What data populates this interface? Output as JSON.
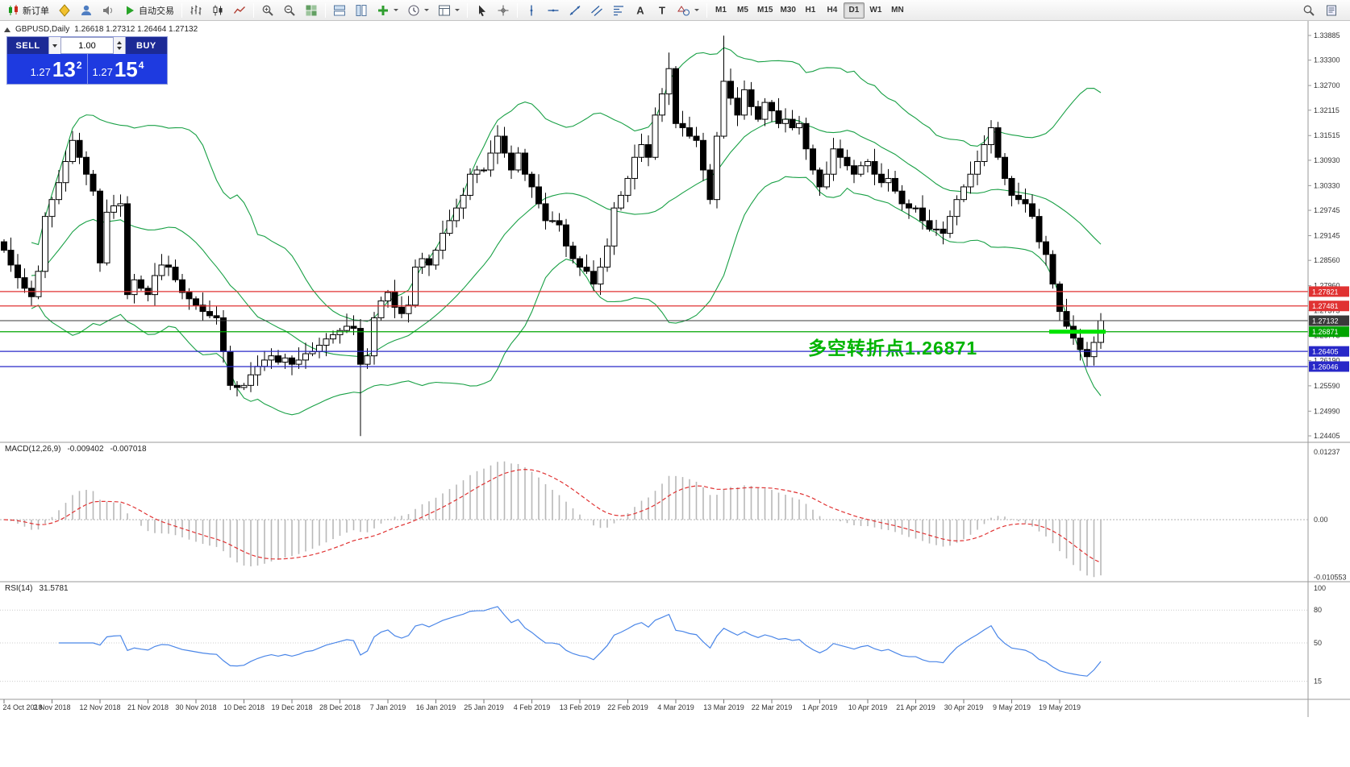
{
  "toolbar": {
    "buttons": [
      {
        "name": "new-order-button",
        "icon": "candles",
        "label": "新订单"
      },
      {
        "name": "metaeditor-button",
        "icon": "bolt"
      },
      {
        "name": "community-button",
        "icon": "user"
      },
      {
        "name": "sounds-button",
        "icon": "speaker"
      },
      {
        "name": "autotrading-button",
        "icon": "play",
        "label": "自动交易"
      },
      {
        "sep": true
      },
      {
        "name": "bar-chart-button",
        "icon": "bars"
      },
      {
        "name": "candlestick-chart-button",
        "icon": "candle"
      },
      {
        "name": "line-chart-button",
        "icon": "line"
      },
      {
        "sep": true
      },
      {
        "name": "zoom-in-button",
        "icon": "zoomin"
      },
      {
        "name": "zoom-out-button",
        "icon": "zoomout"
      },
      {
        "name": "tile-windows-button",
        "icon": "grid"
      },
      {
        "sep": true
      },
      {
        "name": "cascade-windows-button",
        "icon": "tileh"
      },
      {
        "name": "arrange-vertical-button",
        "icon": "tilev"
      },
      {
        "name": "indicators-button",
        "icon": "plus",
        "dropdown": true
      },
      {
        "name": "periods-button",
        "icon": "clock",
        "dropdown": true
      },
      {
        "name": "templates-button",
        "icon": "template",
        "dropdown": true
      },
      {
        "sep": true
      },
      {
        "name": "cursor-button",
        "icon": "cursor"
      },
      {
        "name": "crosshair-button",
        "icon": "crosshair"
      },
      {
        "sep": true
      },
      {
        "name": "vertical-line-button",
        "icon": "vline"
      },
      {
        "name": "horizontal-line-button",
        "icon": "hline"
      },
      {
        "name": "trendline-button",
        "icon": "tline"
      },
      {
        "name": "equidistant-channel-button",
        "icon": "channel"
      },
      {
        "name": "fibonacci-button",
        "icon": "fibo"
      },
      {
        "name": "text-button",
        "icon": "textA"
      },
      {
        "name": "text-label-button",
        "icon": "textT"
      },
      {
        "name": "arrows-button",
        "icon": "shapes",
        "dropdown": true
      },
      {
        "sep": true
      }
    ],
    "timeframes": [
      "M1",
      "M5",
      "M15",
      "M30",
      "H1",
      "H4",
      "D1",
      "W1",
      "MN"
    ],
    "active_timeframe": "D1",
    "right_buttons": [
      {
        "name": "search-button",
        "icon": "search"
      },
      {
        "name": "data-window-button",
        "icon": "book"
      }
    ]
  },
  "symbol": {
    "title": "GBPUSD,Daily",
    "ohlc_text": "1.26618 1.27312 1.26464 1.27132"
  },
  "trade_panel": {
    "sell_label": "SELL",
    "buy_label": "BUY",
    "lot_size": "1.00",
    "sell_price": {
      "prefix": "1.27",
      "big": "13",
      "sup": "2"
    },
    "buy_price": {
      "prefix": "1.27",
      "big": "15",
      "sup": "4"
    },
    "header_color": "#1c2a96",
    "price_color": "#1e3ae0"
  },
  "annotation": {
    "text": "多空转折点1.26871",
    "color": "#00b400"
  },
  "chart_data": {
    "type": "candlestick",
    "symbol": "GBPUSD",
    "timeframe": "Daily",
    "bars_per_label": 7,
    "x_labels": [
      "24 Oct 2018",
      "2 Nov 2018",
      "12 Nov 2018",
      "21 Nov 2018",
      "30 Nov 2018",
      "10 Dec 2018",
      "19 Dec 2018",
      "28 Dec 2018",
      "7 Jan 2019",
      "16 Jan 2019",
      "25 Jan 2019",
      "4 Feb 2019",
      "13 Feb 2019",
      "22 Feb 2019",
      "4 Mar 2019",
      "13 Mar 2019",
      "22 Mar 2019",
      "1 Apr 2019",
      "10 Apr 2019",
      "21 Apr 2019",
      "30 Apr 2019",
      "9 May 2019",
      "19 May 2019"
    ],
    "first_open": 1.29,
    "closes": [
      1.288,
      1.2845,
      1.2815,
      1.279,
      1.277,
      1.283,
      1.296,
      1.3,
      1.304,
      1.309,
      1.314,
      1.31,
      1.306,
      1.302,
      1.285,
      1.297,
      1.2985,
      1.299,
      1.2775,
      1.281,
      1.279,
      1.2775,
      1.282,
      1.2845,
      1.284,
      1.281,
      1.278,
      1.2765,
      1.275,
      1.2735,
      1.2725,
      1.272,
      1.264,
      1.256,
      1.2555,
      1.256,
      1.2585,
      1.2605,
      1.262,
      1.263,
      1.2615,
      1.2625,
      1.261,
      1.262,
      1.2635,
      1.264,
      1.2655,
      1.267,
      1.268,
      1.269,
      1.27,
      1.2695,
      1.261,
      1.263,
      1.272,
      1.276,
      1.278,
      1.2745,
      1.273,
      1.275,
      1.284,
      1.286,
      1.2845,
      1.288,
      1.292,
      1.295,
      1.298,
      1.301,
      1.306,
      1.307,
      1.307,
      1.311,
      1.315,
      1.311,
      1.307,
      1.311,
      1.306,
      1.303,
      1.299,
      1.295,
      1.295,
      1.294,
      1.289,
      1.286,
      1.284,
      1.283,
      1.28,
      1.284,
      1.289,
      1.298,
      1.301,
      1.305,
      1.31,
      1.313,
      1.31,
      1.32,
      1.325,
      1.331,
      1.318,
      1.317,
      1.315,
      1.314,
      1.307,
      1.3,
      1.315,
      1.328,
      1.324,
      1.32,
      1.326,
      1.322,
      1.319,
      1.323,
      1.321,
      1.318,
      1.319,
      1.317,
      1.318,
      1.312,
      1.307,
      1.303,
      1.306,
      1.312,
      1.31,
      1.308,
      1.306,
      1.308,
      1.309,
      1.306,
      1.304,
      1.305,
      1.302,
      1.299,
      1.298,
      1.298,
      1.295,
      1.293,
      1.293,
      1.292,
      1.296,
      1.3,
      1.303,
      1.306,
      1.309,
      1.313,
      1.317,
      1.31,
      1.305,
      1.301,
      1.3,
      1.299,
      1.296,
      1.29,
      1.287,
      1.28,
      1.2735,
      1.27,
      1.2672,
      1.2645,
      1.2628,
      1.26618,
      1.27132
    ],
    "overrides": {
      "52": {
        "low": 1.244
      },
      "97": {
        "high": 1.3348
      },
      "105": {
        "high": 1.3388
      },
      "158": {
        "low": 1.2605
      },
      "160": {
        "high": 1.27312,
        "low": 1.26464
      }
    },
    "y_axis": {
      "min": 1.24405,
      "max": 1.33885,
      "labels": [
        "1.33885",
        "1.33300",
        "1.32700",
        "1.32115",
        "1.31515",
        "1.30930",
        "1.30330",
        "1.29745",
        "1.29145",
        "1.28560",
        "1.27960",
        "1.27375",
        "1.26775",
        "1.26190",
        "1.25590",
        "1.24990",
        "1.24405"
      ]
    },
    "levels": [
      {
        "price": 1.27821,
        "label": "1.27821",
        "color": "#e03232"
      },
      {
        "price": 1.27481,
        "label": "1.27481",
        "color": "#e03232"
      },
      {
        "price": 1.27132,
        "label": "1.27132",
        "color": "#3a3a3a",
        "current": true
      },
      {
        "price": 1.26871,
        "label": "1.26871",
        "color": "#00a400",
        "thick": true
      },
      {
        "price": 1.26405,
        "label": "1.26405",
        "color": "#2828c8"
      },
      {
        "price": 1.26046,
        "label": "1.26046",
        "color": "#2828c8"
      }
    ],
    "indicators": {
      "bollinger": {
        "period": 20,
        "deviation": 2,
        "color": "#18a045"
      },
      "macd": {
        "name": "MACD(12,26,9)",
        "main_value": "-0.009402",
        "signal_value": "-0.007018",
        "histogram_color": "#b8b8b8",
        "signal_color": "#e03232",
        "axis": [
          {
            "v": 0.01237,
            "t": "0.01237"
          },
          {
            "v": 0,
            "t": "0.00"
          },
          {
            "v": -0.010553,
            "t": "-0.010553"
          }
        ]
      },
      "rsi": {
        "name": "RSI(14)",
        "value": "31.5781",
        "color": "#4a86e8",
        "axis": [
          {
            "v": 100,
            "t": "100"
          },
          {
            "v": 80,
            "t": "80"
          },
          {
            "v": 50,
            "t": "50"
          },
          {
            "v": 15,
            "t": "15"
          }
        ],
        "levels": [
          80,
          50,
          15
        ]
      }
    }
  }
}
